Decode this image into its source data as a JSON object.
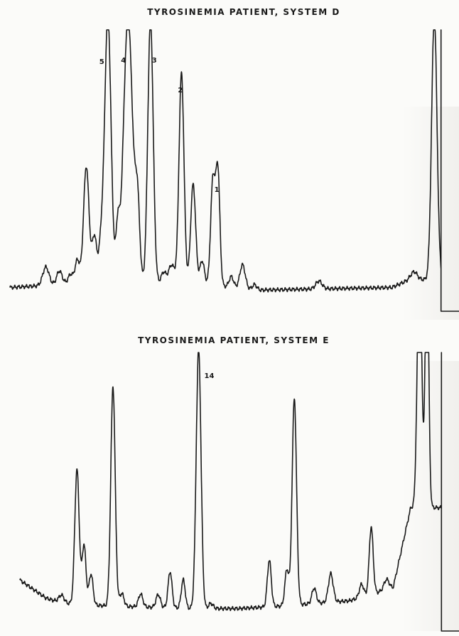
{
  "chart_data": [
    {
      "type": "line",
      "title": "TYROSINEMIA PATIENT, SYSTEM D",
      "xlabel": "",
      "ylabel": "",
      "xlim": [
        0,
        100
      ],
      "ylim": [
        0,
        100
      ],
      "grid": false,
      "line_color": "#1a1a1a",
      "peaks": [
        {
          "x": 8,
          "h": 7,
          "w": 0.7
        },
        {
          "x": 11,
          "h": 5,
          "w": 0.6
        },
        {
          "x": 13.5,
          "h": 3,
          "w": 0.5
        },
        {
          "x": 15,
          "h": 8,
          "w": 0.5
        },
        {
          "x": 17,
          "h": 43,
          "w": 0.6
        },
        {
          "x": 18.8,
          "h": 16,
          "w": 0.5
        },
        {
          "x": 20.3,
          "h": 12,
          "w": 0.5
        },
        {
          "x": 21.8,
          "h": 100,
          "w": 0.7,
          "label": "5"
        },
        {
          "x": 24,
          "h": 18,
          "w": 0.4
        },
        {
          "x": 26.3,
          "h": 100,
          "w": 1.0,
          "label": "4"
        },
        {
          "x": 28.4,
          "h": 28,
          "w": 0.5
        },
        {
          "x": 31.3,
          "h": 100,
          "w": 0.6,
          "label": "3"
        },
        {
          "x": 34.2,
          "h": 4,
          "w": 0.5
        },
        {
          "x": 36,
          "h": 7,
          "w": 0.7
        },
        {
          "x": 38.2,
          "h": 80,
          "w": 0.55,
          "label": "2"
        },
        {
          "x": 40.8,
          "h": 38,
          "w": 0.55
        },
        {
          "x": 42.8,
          "h": 9,
          "w": 0.5
        },
        {
          "x": 45.2,
          "h": 40,
          "w": 0.5
        },
        {
          "x": 46.3,
          "h": 43,
          "w": 0.45,
          "label": "1"
        },
        {
          "x": 49.3,
          "h": 4,
          "w": 0.5
        },
        {
          "x": 51.8,
          "h": 9,
          "w": 0.6
        },
        {
          "x": 54.5,
          "h": 2,
          "w": 0.5
        },
        {
          "x": 68.8,
          "h": 3,
          "w": 0.7
        },
        {
          "x": 90,
          "h": 3,
          "w": 0.7
        },
        {
          "x": 94.5,
          "h": 100,
          "w": 0.6
        }
      ],
      "baseline": [
        [
          0,
          2
        ],
        [
          10,
          3
        ],
        [
          20,
          6
        ],
        [
          30,
          4
        ],
        [
          45,
          3
        ],
        [
          55,
          1
        ],
        [
          85,
          2
        ],
        [
          89,
          5
        ]
      ],
      "end_drop": {
        "x": 96,
        "floor": -1
      }
    },
    {
      "type": "line",
      "title": "TYROSINEMIA PATIENT, SYSTEM E",
      "xlabel": "",
      "ylabel": "",
      "xlim": [
        0,
        100
      ],
      "ylim": [
        0,
        100
      ],
      "grid": false,
      "line_color": "#1a1a1a",
      "peaks": [
        {
          "x": 9.5,
          "h": 3,
          "w": 0.6
        },
        {
          "x": 13,
          "h": 52,
          "w": 0.5
        },
        {
          "x": 14.6,
          "h": 23,
          "w": 0.45
        },
        {
          "x": 16.2,
          "h": 12,
          "w": 0.45
        },
        {
          "x": 21.2,
          "h": 85,
          "w": 0.5
        },
        {
          "x": 23.2,
          "h": 5,
          "w": 0.5
        },
        {
          "x": 27.5,
          "h": 5,
          "w": 0.5
        },
        {
          "x": 31.5,
          "h": 5,
          "w": 0.5
        },
        {
          "x": 34.2,
          "h": 14,
          "w": 0.45
        },
        {
          "x": 37.2,
          "h": 11,
          "w": 0.45
        },
        {
          "x": 40.7,
          "h": 100,
          "w": 0.55,
          "label": "14"
        },
        {
          "x": 43.5,
          "h": 2,
          "w": 0.5
        },
        {
          "x": 56.8,
          "h": 18,
          "w": 0.45
        },
        {
          "x": 60.8,
          "h": 14,
          "w": 0.45
        },
        {
          "x": 62.5,
          "h": 80,
          "w": 0.5
        },
        {
          "x": 67,
          "h": 6,
          "w": 0.5
        },
        {
          "x": 70.8,
          "h": 11,
          "w": 0.55
        },
        {
          "x": 77.8,
          "h": 5,
          "w": 0.5
        },
        {
          "x": 80,
          "h": 26,
          "w": 0.45
        },
        {
          "x": 83.5,
          "h": 4,
          "w": 0.6
        },
        {
          "x": 91,
          "h": 100,
          "w": 0.5
        },
        {
          "x": 92.7,
          "h": 100,
          "w": 0.4
        }
      ],
      "baseline": [
        [
          0,
          12
        ],
        [
          6,
          5
        ],
        [
          10,
          3
        ],
        [
          20,
          2
        ],
        [
          40,
          1
        ],
        [
          50,
          1
        ],
        [
          60,
          2
        ],
        [
          75,
          4
        ],
        [
          85,
          9
        ],
        [
          89,
          40
        ]
      ],
      "end_drop": {
        "x": 96,
        "floor": -1
      }
    }
  ]
}
